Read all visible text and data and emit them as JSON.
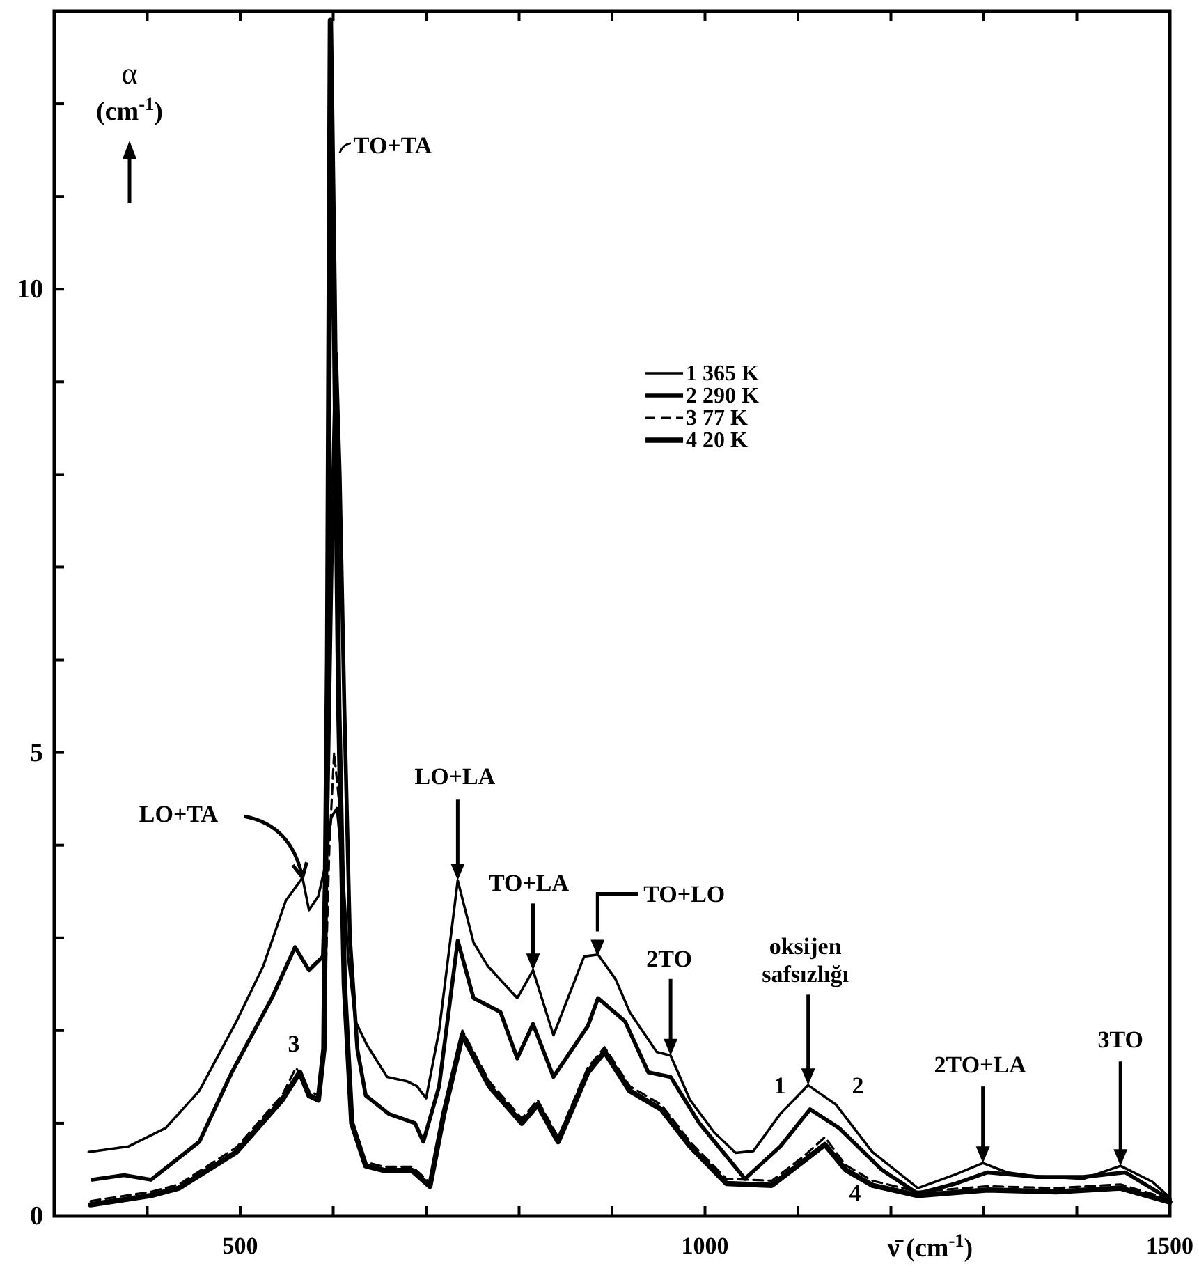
{
  "chart_data": {
    "type": "line",
    "xlabel": "ν̄ (cm$^{-1}$)",
    "ylabel": "α (cm$^{-1}$)",
    "xlim": [
      300,
      1500
    ],
    "ylim": [
      0,
      13
    ],
    "xticks": [
      {
        "value": 400,
        "label": null
      },
      500,
      {
        "value": 600,
        "label": null
      },
      {
        "value": 700,
        "label": null
      },
      {
        "value": 800,
        "label": null
      },
      {
        "value": 900,
        "label": null
      },
      1000,
      {
        "value": 1100,
        "label": null
      },
      {
        "value": 1200,
        "label": null
      },
      {
        "value": 1300,
        "label": null
      },
      {
        "value": 1400,
        "label": null
      },
      1500
    ],
    "yticks": [
      0,
      {
        "value": 1,
        "label": null
      },
      {
        "value": 2,
        "label": null
      },
      {
        "value": 3,
        "label": null
      },
      {
        "value": 4,
        "label": null
      },
      5,
      {
        "value": 6,
        "label": null
      },
      {
        "value": 7,
        "label": null
      },
      {
        "value": 8,
        "label": null
      },
      {
        "value": 9,
        "label": null
      },
      10,
      {
        "value": 11,
        "label": null
      },
      {
        "value": 12,
        "label": null
      }
    ],
    "grid": false,
    "legend": "top right",
    "marker": "none",
    "series": [
      {
        "name": "1 365 K",
        "color": "#000000",
        "line_style": "solid",
        "x": [
          337,
          380,
          420,
          456,
          496,
          525,
          549,
          567,
          574,
          584,
          592,
          598,
          604,
          610,
          616,
          624,
          636,
          658,
          680,
          690,
          700,
          714,
          734,
          751,
          766,
          798,
          815,
          837,
          870,
          885,
          904,
          919,
          948,
          963,
          984,
          1010,
          1033,
          1052,
          1081,
          1111,
          1141,
          1180,
          1229,
          1270,
          1299,
          1325,
          1353,
          1407,
          1447,
          1481,
          1500
        ],
        "values": [
          0.69,
          0.75,
          0.95,
          1.35,
          2.1,
          2.7,
          3.4,
          3.65,
          3.3,
          3.45,
          3.8,
          4.3,
          4.4,
          3.8,
          2.8,
          2.1,
          1.85,
          1.5,
          1.45,
          1.4,
          1.27,
          2.0,
          3.62,
          2.95,
          2.7,
          2.35,
          2.65,
          1.95,
          2.8,
          2.82,
          2.55,
          2.2,
          1.77,
          1.73,
          1.25,
          0.9,
          0.68,
          0.7,
          1.1,
          1.41,
          1.2,
          0.69,
          0.3,
          0.45,
          0.57,
          0.47,
          0.43,
          0.4,
          0.54,
          0.37,
          0.2
        ]
      },
      {
        "name": "2 290 K",
        "color": "#000000",
        "line_style": "solid",
        "x": [
          341,
          375,
          404,
          456,
          491,
          534,
          559,
          574,
          589,
          594,
          599,
          603,
          607,
          612,
          618,
          626,
          635,
          660,
          688,
          697,
          714,
          734,
          751,
          780,
          798,
          815,
          837,
          874,
          885,
          914,
          939,
          963,
          994,
          1043,
          1081,
          1113,
          1144,
          1190,
          1229,
          1270,
          1304,
          1358,
          1407,
          1452,
          1500
        ],
        "values": [
          0.39,
          0.44,
          0.39,
          0.8,
          1.55,
          2.35,
          2.9,
          2.65,
          2.8,
          4.5,
          7.5,
          9.3,
          8.0,
          5.5,
          3.0,
          1.8,
          1.3,
          1.1,
          1.0,
          0.8,
          1.4,
          2.97,
          2.35,
          2.2,
          1.7,
          2.07,
          1.5,
          2.05,
          2.35,
          2.1,
          1.55,
          1.5,
          1.0,
          0.4,
          0.75,
          1.15,
          0.95,
          0.5,
          0.24,
          0.35,
          0.47,
          0.42,
          0.42,
          0.47,
          0.18
        ]
      },
      {
        "name": "3 77 K",
        "color": "#000000",
        "line_style": "dashed",
        "x": [
          339,
          404,
          434,
          496,
          545,
          560,
          574,
          584,
          590,
          596,
          601,
          606,
          612,
          620,
          635,
          655,
          685,
          704,
          719,
          739,
          768,
          803,
          820,
          842,
          874,
          892,
          919,
          953,
          984,
          1023,
          1072,
          1107,
          1129,
          1151,
          1180,
          1229,
          1304,
          1378,
          1447,
          1500
        ],
        "values": [
          0.16,
          0.26,
          0.34,
          0.74,
          1.3,
          1.6,
          1.35,
          1.3,
          1.9,
          4.0,
          5.0,
          4.5,
          2.6,
          1.05,
          0.58,
          0.53,
          0.53,
          0.36,
          1.15,
          2.0,
          1.45,
          1.05,
          1.25,
          0.85,
          1.6,
          1.82,
          1.4,
          1.2,
          0.8,
          0.4,
          0.38,
          0.65,
          0.85,
          0.55,
          0.38,
          0.26,
          0.32,
          0.3,
          0.34,
          0.18
        ]
      },
      {
        "name": "4 20 K",
        "color": "#000000",
        "line_style": "solid",
        "x": [
          339,
          404,
          434,
          496,
          545,
          564,
          574,
          584,
          590,
          594,
          597,
          601,
          606,
          612,
          620,
          635,
          655,
          685,
          704,
          719,
          739,
          768,
          803,
          820,
          842,
          874,
          892,
          919,
          953,
          984,
          1023,
          1072,
          1107,
          1129,
          1151,
          1180,
          1229,
          1304,
          1378,
          1447,
          1500
        ],
        "values": [
          0.12,
          0.22,
          0.3,
          0.69,
          1.25,
          1.55,
          1.3,
          1.25,
          1.8,
          6.0,
          12.9,
          10.0,
          5.5,
          2.5,
          1.0,
          0.54,
          0.49,
          0.49,
          0.32,
          1.1,
          1.95,
          1.4,
          1.0,
          1.2,
          0.8,
          1.55,
          1.77,
          1.35,
          1.15,
          0.75,
          0.35,
          0.33,
          0.6,
          0.77,
          0.5,
          0.33,
          0.22,
          0.28,
          0.26,
          0.3,
          0.15
        ]
      }
    ],
    "annotations": [
      {
        "text": "TO+TA",
        "x": 604,
        "y": 11.5
      },
      {
        "text": "LO+TA",
        "x": 567,
        "y": 3.65
      },
      {
        "text": "LO+LA",
        "x": 734,
        "y": 3.62
      },
      {
        "text": "TO+LA",
        "x": 815,
        "y": 2.65
      },
      {
        "text": "TO+LO",
        "x": 880,
        "y": 2.8
      },
      {
        "text": "2TO",
        "x": 963,
        "y": 1.73
      },
      {
        "text": "oksijen safsızlığı",
        "x": 1111,
        "y": 1.41
      },
      {
        "text": "2TO+LA",
        "x": 1299,
        "y": 0.57
      },
      {
        "text": "3TO",
        "x": 1447,
        "y": 0.54
      },
      "1",
      "2",
      "3",
      "4"
    ]
  }
}
